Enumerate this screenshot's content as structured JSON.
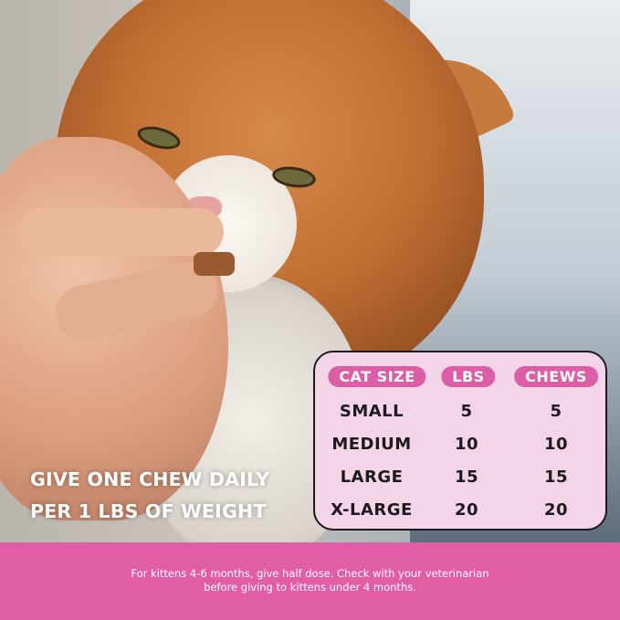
{
  "headline": {
    "line1": "GIVE ONE CHEW DAILY",
    "line2": "PER 1 LBS OF WEIGHT"
  },
  "table": {
    "headers": [
      "CAT SIZE",
      "LBS",
      "CHEWS"
    ],
    "rows": [
      [
        "SMALL",
        "5",
        "5"
      ],
      [
        "MEDIUM",
        "10",
        "10"
      ],
      [
        "LARGE",
        "15",
        "15"
      ],
      [
        "X-LARGE",
        "20",
        "20"
      ]
    ]
  },
  "footer": {
    "line1": "For kittens 4-6 months, give half dose. Check with your veterinarian",
    "line2": "before giving to kittens under 4 months."
  },
  "colors": {
    "pink": "#e15ea7",
    "table_bg": "#f4d5e7",
    "pill": "#dc5ea6"
  }
}
